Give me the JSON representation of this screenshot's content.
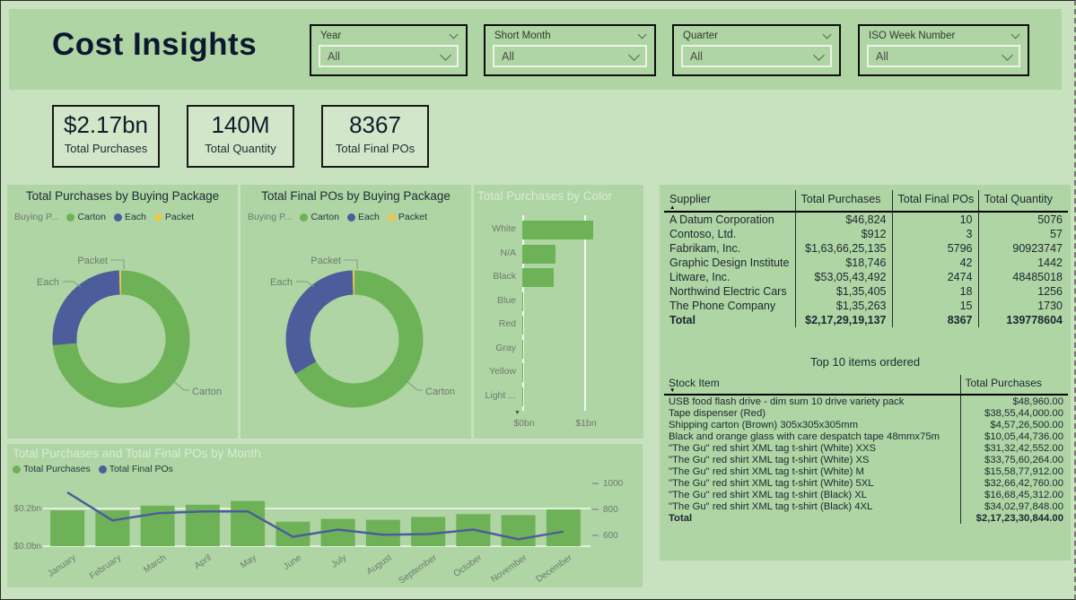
{
  "page": {
    "title": "Cost Insights"
  },
  "colors": {
    "accent_green": "#6eb257",
    "accent_blue": "#4d5d9b",
    "accent_yellow": "#e8c854",
    "panel_green": "#aed5a3",
    "page_green": "#c8e2bf",
    "card_green": "#d2e7ca",
    "dark_text": "#1d2733",
    "muted_text": "#6f7a70",
    "gridline_white": "rgba(255,255,255,0.85)"
  },
  "slicers": [
    {
      "label": "Year",
      "value": "All"
    },
    {
      "label": "Short Month",
      "value": "All"
    },
    {
      "label": "Quarter",
      "value": "All"
    },
    {
      "label": "ISO Week Number",
      "value": "All"
    }
  ],
  "kpis": [
    {
      "value": "$2.17bn",
      "label": "Total Purchases"
    },
    {
      "value": "140M",
      "label": "Total Quantity"
    },
    {
      "value": "8367",
      "label": "Total Final POs"
    }
  ],
  "chart_data": [
    {
      "id": "donut_purchases",
      "type": "pie",
      "donut": true,
      "title": "Total Purchases by Buying Package",
      "legend_title": "Buying P...",
      "legend_position": "top",
      "categories": [
        "Carton",
        "Each",
        "Packet"
      ],
      "values_pct": [
        73.5,
        26,
        0.5
      ],
      "colors": [
        "#6eb257",
        "#4d5d9b",
        "#e8c854"
      ]
    },
    {
      "id": "donut_final_pos",
      "type": "pie",
      "donut": true,
      "title": "Total Final POs by Buying Package",
      "legend_title": "Buying P...",
      "legend_position": "top",
      "categories": [
        "Carton",
        "Each",
        "Packet"
      ],
      "values_pct": [
        66.5,
        33,
        0.5
      ],
      "colors": [
        "#6eb257",
        "#4d5d9b",
        "#e8c854"
      ]
    },
    {
      "id": "bar_by_color",
      "type": "bar",
      "orientation": "horizontal",
      "title": "Total Purchases by Color",
      "categories": [
        "White",
        "N/A",
        "Black",
        "Blue",
        "Red",
        "Gray",
        "Yellow",
        "Light ..."
      ],
      "values_bn": [
        1.15,
        0.53,
        0.51,
        0.005,
        0.004,
        0.003,
        0.002,
        0.002
      ],
      "xlabel": "",
      "ylabel": "",
      "xticks": [
        "$0bn",
        "$1bn"
      ],
      "xtick_values_bn": [
        0,
        1
      ],
      "grid": true,
      "scroll_indicator": "down"
    },
    {
      "id": "combo_by_month",
      "type": "bar+line",
      "title": "Total Purchases and Total Final POs by Month",
      "categories": [
        "January",
        "February",
        "March",
        "April",
        "May",
        "June",
        "July",
        "August",
        "September",
        "October",
        "November",
        "December"
      ],
      "series": [
        {
          "name": "Total Purchases",
          "kind": "bar",
          "unit": "bn",
          "values": [
            0.19,
            0.19,
            0.215,
            0.22,
            0.24,
            0.13,
            0.145,
            0.14,
            0.155,
            0.17,
            0.165,
            0.195
          ]
        },
        {
          "name": "Total Final POs",
          "kind": "line",
          "values": [
            930,
            715,
            770,
            785,
            785,
            590,
            645,
            605,
            610,
            645,
            570,
            630
          ]
        }
      ],
      "left_axis": {
        "ticks": [
          "$0.0bn",
          "$0.2bn"
        ],
        "tick_values_bn": [
          0,
          0.2
        ]
      },
      "right_axis": {
        "ticks": [
          "600",
          "800",
          "1000"
        ],
        "tick_values": [
          600,
          800,
          1000
        ]
      },
      "legend_position": "top",
      "grid": true
    }
  ],
  "supplier_table": {
    "columns": [
      "Supplier",
      "Total Purchases",
      "Total Final POs",
      "Total Quantity"
    ],
    "sort": {
      "column": "Supplier",
      "direction": "asc"
    },
    "rows": [
      [
        "A Datum Corporation",
        "$46,824",
        "10",
        "5076"
      ],
      [
        "Contoso, Ltd.",
        "$912",
        "3",
        "57"
      ],
      [
        "Fabrikam, Inc.",
        "$1,63,66,25,135",
        "5796",
        "90923747"
      ],
      [
        "Graphic Design Institute",
        "$18,746",
        "42",
        "1442"
      ],
      [
        "Litware, Inc.",
        "$53,05,43,492",
        "2474",
        "48485018"
      ],
      [
        "Northwind Electric Cars",
        "$1,35,405",
        "18",
        "1256"
      ],
      [
        "The Phone Company",
        "$1,35,263",
        "15",
        "1730"
      ]
    ],
    "total": [
      "Total",
      "$2,17,29,19,137",
      "8367",
      "139778604"
    ]
  },
  "top_items_table": {
    "title": "Top 10 items ordered",
    "columns": [
      "Stock Item",
      "Total Purchases"
    ],
    "sort": {
      "column": "Stock Item",
      "direction": "desc"
    },
    "rows": [
      [
        "USB food flash drive - dim sum 10 drive variety pack",
        "$48,960.00"
      ],
      [
        "Tape dispenser (Red)",
        "$38,55,44,000.00"
      ],
      [
        "Shipping carton (Brown) 305x305x305mm",
        "$4,57,26,500.00"
      ],
      [
        "Black and orange glass with care despatch tape 48mmx75m",
        "$10,05,44,736.00"
      ],
      [
        "\"The Gu\" red shirt XML tag t-shirt (White) XXS",
        "$31,32,42,552.00"
      ],
      [
        "\"The Gu\" red shirt XML tag t-shirt (White) XS",
        "$33,75,60,264.00"
      ],
      [
        "\"The Gu\" red shirt XML tag t-shirt (White) M",
        "$15,58,77,912.00"
      ],
      [
        "\"The Gu\" red shirt XML tag t-shirt (White) 5XL",
        "$32,66,42,760.00"
      ],
      [
        "\"The Gu\" red shirt XML tag t-shirt (Black) XL",
        "$16,68,45,312.00"
      ],
      [
        "\"The Gu\" red shirt XML tag t-shirt (Black) 4XL",
        "$34,02,97,848.00"
      ]
    ],
    "total": [
      "Total",
      "$2,17,23,30,844.00"
    ]
  }
}
